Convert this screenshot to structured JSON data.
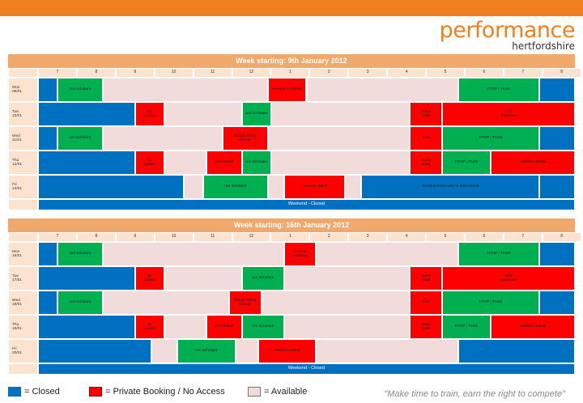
{
  "brand": {
    "name": "performance",
    "region": "hertfordshire"
  },
  "hours": [
    "7",
    "8",
    "9",
    "10",
    "11",
    "12",
    "1",
    "2",
    "3",
    "4",
    "5",
    "6",
    "7",
    "8"
  ],
  "weeks": [
    {
      "title": "Week starting: 9th January 2012",
      "days": [
        {
          "label": "Mon\n09/01",
          "blocks": [
            {
              "start": 0,
              "end": 0.6,
              "type": "blue",
              "text": ""
            },
            {
              "start": 0.6,
              "end": 2,
              "type": "green",
              "text": "Uni scholars"
            },
            {
              "start": 2,
              "end": 7.1,
              "type": "avail",
              "text": ""
            },
            {
              "start": 7.1,
              "end": 8.3,
              "type": "red",
              "text": "Arsenal Academy"
            },
            {
              "start": 8.3,
              "end": 13,
              "type": "avail",
              "text": ""
            },
            {
              "start": 13,
              "end": 15.5,
              "type": "green",
              "text": "HTAP / TASS"
            },
            {
              "start": 15.5,
              "end": 16.6,
              "type": "blue",
              "text": ""
            }
          ]
        },
        {
          "label": "Tue\n10/01",
          "blocks": [
            {
              "start": 0,
              "end": 3,
              "type": "blue",
              "text": ""
            },
            {
              "start": 3,
              "end": 3.9,
              "type": "red",
              "text": "Sit\nLadies"
            },
            {
              "start": 3.9,
              "end": 6.3,
              "type": "avail",
              "text": ""
            },
            {
              "start": 6.3,
              "end": 7.2,
              "type": "green",
              "text": "Uni Scholars"
            },
            {
              "start": 7.2,
              "end": 11.5,
              "type": "avail",
              "text": ""
            },
            {
              "start": 11.5,
              "end": 12.5,
              "type": "red",
              "text": "Swim\nClub"
            },
            {
              "start": 12.5,
              "end": 16.6,
              "type": "red",
              "text": "Golf\nSessions"
            }
          ]
        },
        {
          "label": "Wed\n11/01",
          "blocks": [
            {
              "start": 0,
              "end": 0.6,
              "type": "blue",
              "text": ""
            },
            {
              "start": 0.6,
              "end": 2,
              "type": "green",
              "text": "Uni scholars"
            },
            {
              "start": 2,
              "end": 5.7,
              "type": "avail",
              "text": ""
            },
            {
              "start": 5.7,
              "end": 7.1,
              "type": "red",
              "text": "Weight lifting\nSoccer"
            },
            {
              "start": 7.1,
              "end": 11.5,
              "type": "avail",
              "text": ""
            },
            {
              "start": 11.5,
              "end": 12.5,
              "type": "red",
              "text": "Golf"
            },
            {
              "start": 12.5,
              "end": 15.5,
              "type": "green",
              "text": "HTAP / TASS"
            },
            {
              "start": 15.5,
              "end": 16.6,
              "type": "blue",
              "text": ""
            }
          ]
        },
        {
          "label": "Thu\n12/01",
          "blocks": [
            {
              "start": 0,
              "end": 3,
              "type": "blue",
              "text": ""
            },
            {
              "start": 3,
              "end": 3.9,
              "type": "red",
              "text": "Sit\nLadies"
            },
            {
              "start": 3.9,
              "end": 5.2,
              "type": "avail",
              "text": ""
            },
            {
              "start": 5.2,
              "end": 6.3,
              "type": "red",
              "text": "Uni Netball"
            },
            {
              "start": 6.3,
              "end": 7.2,
              "type": "green",
              "text": "Uni Scholars"
            },
            {
              "start": 7.2,
              "end": 11.5,
              "type": "avail",
              "text": ""
            },
            {
              "start": 11.5,
              "end": 12.5,
              "type": "red",
              "text": "Swim\nClub"
            },
            {
              "start": 12.5,
              "end": 14,
              "type": "green",
              "text": "HTAP / TASS"
            },
            {
              "start": 14,
              "end": 16.6,
              "type": "red",
              "text": "Hatfield Netball"
            }
          ]
        },
        {
          "label": "Fri\n13/01",
          "blocks": [
            {
              "start": 0,
              "end": 4.5,
              "type": "blue",
              "text": ""
            },
            {
              "start": 4.5,
              "end": 5.1,
              "type": "avail",
              "text": ""
            },
            {
              "start": 5.1,
              "end": 7.1,
              "type": "green",
              "text": "Uni Scholars"
            },
            {
              "start": 7.1,
              "end": 7.6,
              "type": "avail",
              "text": ""
            },
            {
              "start": 7.6,
              "end": 9.5,
              "type": "red",
              "text": "Arsenal Ladies"
            },
            {
              "start": 9.5,
              "end": 10,
              "type": "avail",
              "text": ""
            },
            {
              "start": 10,
              "end": 15.5,
              "type": "blue",
              "text": "Working Externally at Batchwood"
            },
            {
              "start": 15.5,
              "end": 16.6,
              "type": "blue",
              "text": ""
            }
          ]
        }
      ],
      "weekend": "Weekend - Closed"
    },
    {
      "title": "Week starting: 16th January 2012",
      "days": [
        {
          "label": "Mon\n16/01",
          "blocks": [
            {
              "start": 0,
              "end": 0.6,
              "type": "blue",
              "text": ""
            },
            {
              "start": 0.6,
              "end": 2,
              "type": "green",
              "text": "Uni scholars"
            },
            {
              "start": 2,
              "end": 7.6,
              "type": "avail",
              "text": ""
            },
            {
              "start": 7.6,
              "end": 8.6,
              "type": "red",
              "text": "Arsenal\nAcademy"
            },
            {
              "start": 8.6,
              "end": 13,
              "type": "avail",
              "text": ""
            },
            {
              "start": 13,
              "end": 15.5,
              "type": "green",
              "text": "HTAP / TASS"
            },
            {
              "start": 15.5,
              "end": 16.6,
              "type": "blue",
              "text": ""
            }
          ]
        },
        {
          "label": "Tue\n17/01",
          "blocks": [
            {
              "start": 0,
              "end": 3,
              "type": "blue",
              "text": ""
            },
            {
              "start": 3,
              "end": 3.9,
              "type": "red",
              "text": "Sit\nLadies"
            },
            {
              "start": 3.9,
              "end": 6.3,
              "type": "avail",
              "text": ""
            },
            {
              "start": 6.3,
              "end": 7.6,
              "type": "green",
              "text": "Uni Scholars"
            },
            {
              "start": 7.6,
              "end": 11.5,
              "type": "avail",
              "text": ""
            },
            {
              "start": 11.5,
              "end": 12.5,
              "type": "red",
              "text": "Swim\nClub"
            },
            {
              "start": 12.5,
              "end": 16.6,
              "type": "red",
              "text": "Golf\nSessions"
            }
          ]
        },
        {
          "label": "Wed\n18/01",
          "blocks": [
            {
              "start": 0,
              "end": 0.6,
              "type": "blue",
              "text": ""
            },
            {
              "start": 0.6,
              "end": 2,
              "type": "green",
              "text": "Uni scholars"
            },
            {
              "start": 2,
              "end": 5.9,
              "type": "avail",
              "text": ""
            },
            {
              "start": 5.9,
              "end": 6.9,
              "type": "red",
              "text": "Weight lifting\nSoccer"
            },
            {
              "start": 6.9,
              "end": 11.5,
              "type": "avail",
              "text": ""
            },
            {
              "start": 11.5,
              "end": 12.5,
              "type": "red",
              "text": "Golf"
            },
            {
              "start": 12.5,
              "end": 15.5,
              "type": "green",
              "text": "HTAP / TASS"
            },
            {
              "start": 15.5,
              "end": 16.6,
              "type": "blue",
              "text": ""
            }
          ]
        },
        {
          "label": "Thu\n19/01",
          "blocks": [
            {
              "start": 0,
              "end": 3,
              "type": "blue",
              "text": ""
            },
            {
              "start": 3,
              "end": 3.9,
              "type": "red",
              "text": "Sit\nLadies"
            },
            {
              "start": 3.9,
              "end": 5.2,
              "type": "avail",
              "text": ""
            },
            {
              "start": 5.2,
              "end": 6.3,
              "type": "red",
              "text": "Uni Netball"
            },
            {
              "start": 6.3,
              "end": 7.6,
              "type": "green",
              "text": "Uni Scholars"
            },
            {
              "start": 7.6,
              "end": 11.5,
              "type": "avail",
              "text": ""
            },
            {
              "start": 11.5,
              "end": 12.5,
              "type": "red",
              "text": "Swim\nClub"
            },
            {
              "start": 12.5,
              "end": 14,
              "type": "green",
              "text": "HTAP / TASS"
            },
            {
              "start": 14,
              "end": 16.6,
              "type": "red",
              "text": "Hatfield Netball"
            }
          ]
        },
        {
          "label": "Fri\n20/01",
          "blocks": [
            {
              "start": 0,
              "end": 3.5,
              "type": "blue",
              "text": ""
            },
            {
              "start": 3.5,
              "end": 4.3,
              "type": "avail",
              "text": ""
            },
            {
              "start": 4.3,
              "end": 6.1,
              "type": "green",
              "text": "Uni Scholars"
            },
            {
              "start": 6.1,
              "end": 6.8,
              "type": "avail",
              "text": ""
            },
            {
              "start": 6.8,
              "end": 8.6,
              "type": "red",
              "text": "Arsenal Ladies"
            },
            {
              "start": 8.6,
              "end": 13,
              "type": "avail",
              "text": ""
            },
            {
              "start": 13,
              "end": 16.6,
              "type": "blue",
              "text": ""
            }
          ]
        }
      ],
      "weekend": "Weekend - Closed"
    }
  ],
  "legend": {
    "closed": "= Closed",
    "private": "= Private Booking / No Access",
    "available": "= Available"
  },
  "quote": "\"Make time to train, earn the right to compete\"",
  "colors": {
    "orange": "#f07f1d",
    "blue": "#0070c0",
    "green": "#00b050",
    "red": "#ff0000",
    "available": "#f2dcdb"
  }
}
